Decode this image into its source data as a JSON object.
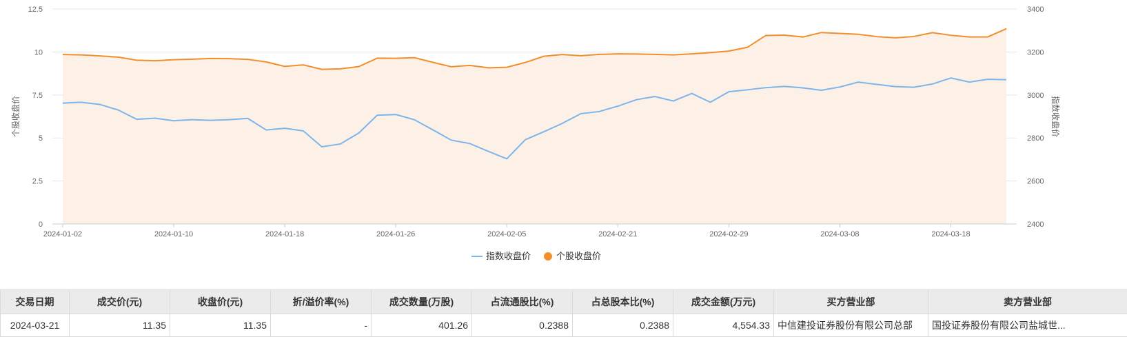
{
  "chart_data": {
    "type": "line",
    "x": [
      "2024-01-02",
      "2024-01-03",
      "2024-01-04",
      "2024-01-05",
      "2024-01-08",
      "2024-01-09",
      "2024-01-10",
      "2024-01-11",
      "2024-01-12",
      "2024-01-15",
      "2024-01-16",
      "2024-01-17",
      "2024-01-18",
      "2024-01-19",
      "2024-01-22",
      "2024-01-23",
      "2024-01-24",
      "2024-01-25",
      "2024-01-26",
      "2024-01-29",
      "2024-01-30",
      "2024-01-31",
      "2024-02-01",
      "2024-02-02",
      "2024-02-05",
      "2024-02-06",
      "2024-02-07",
      "2024-02-08",
      "2024-02-19",
      "2024-02-20",
      "2024-02-21",
      "2024-02-22",
      "2024-02-23",
      "2024-02-26",
      "2024-02-27",
      "2024-02-28",
      "2024-02-29",
      "2024-03-01",
      "2024-03-04",
      "2024-03-05",
      "2024-03-06",
      "2024-03-07",
      "2024-03-08",
      "2024-03-11",
      "2024-03-12",
      "2024-03-13",
      "2024-03-14",
      "2024-03-15",
      "2024-03-18",
      "2024-03-19",
      "2024-03-20",
      "2024-03-21"
    ],
    "x_ticks": [
      "2024-01-02",
      "2024-01-10",
      "2024-01-18",
      "2024-01-26",
      "2024-02-05",
      "2024-02-21",
      "2024-02-29",
      "2024-03-08",
      "2024-03-18"
    ],
    "y_left": {
      "label": "个股收盘价",
      "ticks": [
        "0",
        "2.5",
        "5",
        "7.5",
        "10",
        "12.5"
      ],
      "range": [
        0,
        12.5
      ]
    },
    "y_right": {
      "label": "指数收盘价",
      "ticks": [
        "2400",
        "2600",
        "2800",
        "3000",
        "3200",
        "3400"
      ],
      "range": [
        2400,
        3400
      ]
    },
    "series": [
      {
        "name": "指数收盘价",
        "axis": "right",
        "color": "#7cb5ec",
        "values": [
          2962,
          2966,
          2956,
          2930,
          2887,
          2892,
          2880,
          2885,
          2882,
          2885,
          2891,
          2837,
          2845,
          2833,
          2759,
          2772,
          2823,
          2906,
          2909,
          2885,
          2838,
          2790,
          2774,
          2738,
          2703,
          2792,
          2829,
          2868,
          2913,
          2923,
          2948,
          2978,
          2993,
          2972,
          3007,
          2966,
          3015,
          3024,
          3034,
          3040,
          3033,
          3022,
          3037,
          3060,
          3049,
          3039,
          3036,
          3051,
          3079,
          3060,
          3073,
          3071
        ]
      },
      {
        "name": "个股收盘价",
        "axis": "left",
        "color": "#f28f2c",
        "area_color": "#fdf0e6",
        "values": [
          9.85,
          9.83,
          9.77,
          9.7,
          9.52,
          9.49,
          9.55,
          9.58,
          9.62,
          9.61,
          9.57,
          9.42,
          9.16,
          9.25,
          8.99,
          9.02,
          9.15,
          9.64,
          9.63,
          9.67,
          9.4,
          9.14,
          9.22,
          9.08,
          9.11,
          9.39,
          9.75,
          9.85,
          9.78,
          9.86,
          9.89,
          9.88,
          9.86,
          9.83,
          9.89,
          9.96,
          10.05,
          10.27,
          10.96,
          10.98,
          10.87,
          11.13,
          11.08,
          11.03,
          10.89,
          10.82,
          10.9,
          11.12,
          10.97,
          10.87,
          10.88,
          11.35
        ]
      }
    ]
  },
  "table": {
    "headers": [
      "交易日期",
      "成交价(元)",
      "收盘价(元)",
      "折/溢价率(%)",
      "成交数量(万股)",
      "占流通股比(%)",
      "占总股本比(%)",
      "成交金额(万元)",
      "买方营业部",
      "卖方营业部"
    ],
    "rows": [
      [
        "2024-03-21",
        "11.35",
        "11.35",
        "-",
        "401.26",
        "0.2388",
        "0.2388",
        "4,554.33",
        "中信建投证券股份有限公司总部",
        "国投证券股份有限公司盐城世..."
      ]
    ]
  }
}
